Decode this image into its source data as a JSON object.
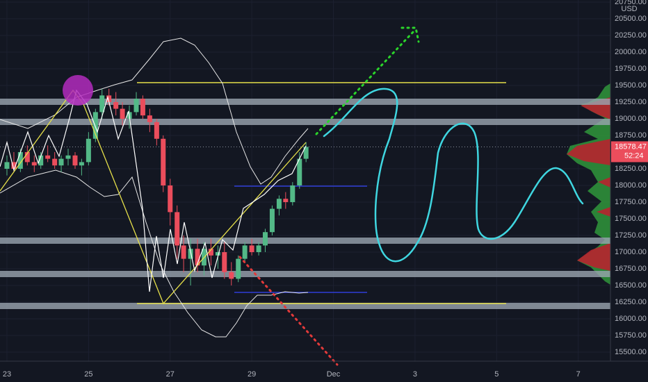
{
  "chart_data": {
    "type": "candlestick",
    "currency": "USD",
    "last_price": {
      "value": 18578.47,
      "label": "18578.47"
    },
    "countdown": "52:24",
    "up_color": "#53b987",
    "down_color": "#eb4d5c",
    "xlim": [
      -0.17,
      14.79
    ],
    "ylim": [
      15365,
      20781
    ],
    "xticks": [
      {
        "value": 0,
        "label": "23"
      },
      {
        "value": 2,
        "label": "25"
      },
      {
        "value": 4,
        "label": "27"
      },
      {
        "value": 6,
        "label": "29"
      },
      {
        "value": 8,
        "label": "Dec"
      },
      {
        "value": 10,
        "label": "3"
      },
      {
        "value": 12,
        "label": "5"
      },
      {
        "value": 14,
        "label": "7"
      }
    ],
    "yticks": [
      {
        "value": 15500,
        "label": "15500.00"
      },
      {
        "value": 15750,
        "label": "15750.00"
      },
      {
        "value": 16000,
        "label": "16000.00"
      },
      {
        "value": 16250,
        "label": "16250.00"
      },
      {
        "value": 16500,
        "label": "16500.00"
      },
      {
        "value": 16750,
        "label": "16750.00"
      },
      {
        "value": 17000,
        "label": "17000.00"
      },
      {
        "value": 17250,
        "label": "17250.00"
      },
      {
        "value": 17500,
        "label": "17500.00"
      },
      {
        "value": 17750,
        "label": "17750.00"
      },
      {
        "value": 18000,
        "label": "18000.00"
      },
      {
        "value": 18250,
        "label": "18250.00"
      },
      {
        "value": 18750,
        "label": "18750.00"
      },
      {
        "value": 19000,
        "label": "19000.00"
      },
      {
        "value": 19250,
        "label": "19250.00"
      },
      {
        "value": 19500,
        "label": "19500.00"
      },
      {
        "value": 19750,
        "label": "19750.00"
      },
      {
        "value": 20000,
        "label": "20000.00"
      },
      {
        "value": 20250,
        "label": "20250.00"
      },
      {
        "value": 20500,
        "label": "20500.00"
      },
      {
        "value": 20750,
        "label": "20750.00"
      }
    ],
    "grid": true,
    "x": [
      0,
      0.17,
      0.33,
      0.5,
      0.67,
      0.83,
      1,
      1.17,
      1.33,
      1.5,
      1.67,
      1.83,
      2,
      2.17,
      2.33,
      2.5,
      2.67,
      2.83,
      3,
      3.17,
      3.33,
      3.5,
      3.67,
      3.83,
      4,
      4.17,
      4.33,
      4.5,
      4.67,
      4.83,
      5,
      5.17,
      5.33,
      5.5,
      5.67,
      5.83,
      6,
      6.17,
      6.33,
      6.5,
      6.67,
      6.83,
      7,
      7.17,
      7.33
    ],
    "open": [
      18250,
      18350,
      18250,
      18500,
      18350,
      18300,
      18450,
      18400,
      18300,
      18400,
      18450,
      18300,
      18350,
      18700,
      19100,
      19350,
      19250,
      19150,
      19000,
      19100,
      19300,
      19050,
      18950,
      18700,
      18000,
      17600,
      17100,
      16900,
      17050,
      16800,
      17050,
      16950,
      17000,
      16700,
      16600,
      16900,
      17100,
      17000,
      17100,
      17300,
      17650,
      17800,
      17750,
      18000,
      18400
    ],
    "high": [
      18450,
      18500,
      18550,
      18600,
      18450,
      18500,
      18600,
      18500,
      18450,
      18550,
      18500,
      18400,
      18800,
      19150,
      19450,
      19450,
      19400,
      19250,
      19200,
      19400,
      19350,
      19150,
      19000,
      18750,
      18100,
      17700,
      17250,
      17200,
      17200,
      17150,
      17200,
      17100,
      17150,
      16850,
      16950,
      17150,
      17200,
      17150,
      17350,
      17700,
      17850,
      17900,
      18050,
      18500,
      18650
    ],
    "low": [
      18150,
      18200,
      18200,
      18300,
      18200,
      18250,
      18350,
      18250,
      18200,
      18300,
      18250,
      18150,
      18300,
      18650,
      19000,
      19200,
      19050,
      18900,
      18850,
      19050,
      19000,
      18800,
      18600,
      17900,
      17400,
      16900,
      16700,
      16500,
      16700,
      16650,
      16800,
      16750,
      16600,
      16500,
      16550,
      16850,
      16950,
      16950,
      17000,
      17250,
      17550,
      17650,
      17700,
      17950,
      18350
    ],
    "close": [
      18350,
      18250,
      18500,
      18350,
      18300,
      18450,
      18400,
      18300,
      18400,
      18450,
      18300,
      18350,
      18700,
      19100,
      19350,
      19250,
      19150,
      19000,
      19100,
      19300,
      19050,
      18950,
      18700,
      18000,
      17600,
      17100,
      16900,
      17050,
      16800,
      17050,
      16950,
      17000,
      16700,
      16600,
      16900,
      17100,
      17000,
      17100,
      17300,
      17650,
      17800,
      17750,
      18000,
      18400,
      18578.47
    ]
  }
}
